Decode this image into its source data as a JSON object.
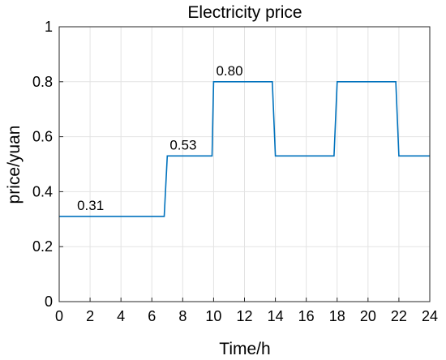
{
  "chart_data": {
    "type": "line",
    "title": "Electricity price",
    "xlabel": "Time/h",
    "ylabel": "price/yuan",
    "xlim": [
      0,
      24
    ],
    "ylim": [
      0,
      1
    ],
    "xticks": [
      0,
      2,
      4,
      6,
      8,
      10,
      12,
      14,
      16,
      18,
      20,
      22,
      24
    ],
    "yticks": [
      0,
      0.2,
      0.4,
      0.6,
      0.8,
      1
    ],
    "ytick_labels": [
      "0",
      "0.2",
      "0.4",
      "0.6",
      "0.8",
      "1"
    ],
    "grid": true,
    "series": [
      {
        "color": "#0072BD",
        "x": [
          0,
          6.8,
          7,
          9,
          9.9,
          10,
          13.8,
          14,
          17.8,
          18,
          21.8,
          22,
          24
        ],
        "y": [
          0.31,
          0.31,
          0.53,
          0.53,
          0.53,
          0.8,
          0.8,
          0.53,
          0.53,
          0.8,
          0.8,
          0.53,
          0.53
        ]
      }
    ],
    "annotations": [
      {
        "text": "0.31",
        "x": 2,
        "y": 0.31
      },
      {
        "text": "0.53",
        "x": 8,
        "y": 0.53
      },
      {
        "text": "0.80",
        "x": 11,
        "y": 0.8
      }
    ]
  }
}
